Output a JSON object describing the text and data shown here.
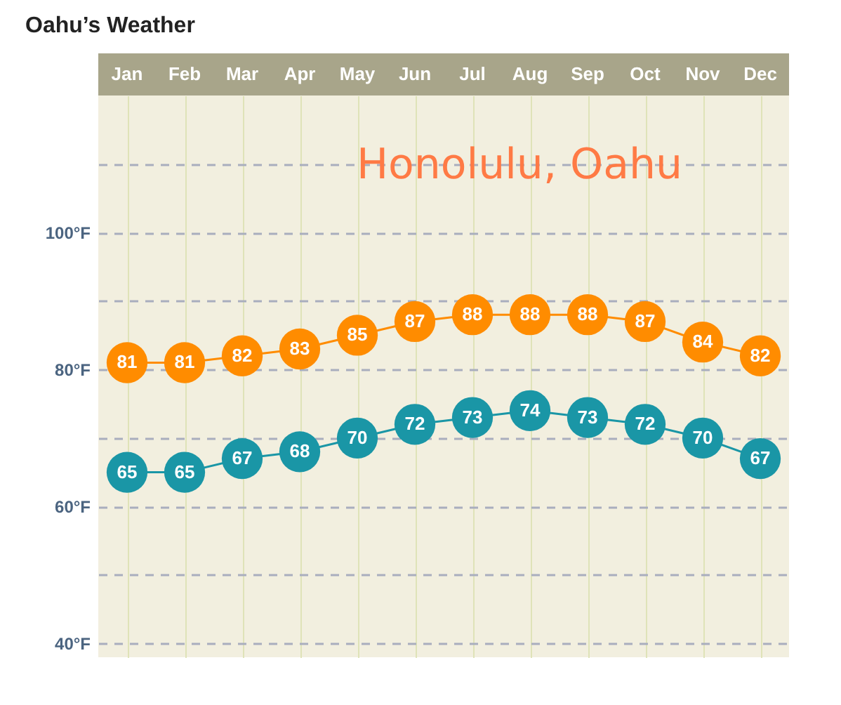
{
  "chart_data": {
    "type": "line",
    "title": "Oahu’s Weather",
    "annotations": [
      "Honolulu, Oahu"
    ],
    "categories": [
      "Jan",
      "Feb",
      "Mar",
      "Apr",
      "May",
      "Jun",
      "Jul",
      "Aug",
      "Sep",
      "Oct",
      "Nov",
      "Dec"
    ],
    "series": [
      {
        "color": "#ff8c00",
        "values": [
          81,
          81,
          82,
          83,
          85,
          87,
          88,
          88,
          88,
          87,
          84,
          82
        ]
      },
      {
        "color": "#1a96a6",
        "values": [
          65,
          65,
          67,
          68,
          70,
          72,
          73,
          74,
          73,
          72,
          70,
          67
        ]
      }
    ],
    "ylim": [
      38,
      120
    ],
    "yticks": [
      {
        "value": 40,
        "label": "40°F"
      },
      {
        "value": 50,
        "label": null
      },
      {
        "value": 60,
        "label": "60°F"
      },
      {
        "value": 70,
        "label": null
      },
      {
        "value": 80,
        "label": "80°F"
      },
      {
        "value": 90,
        "label": null
      },
      {
        "value": 100,
        "label": "100°F"
      },
      {
        "value": 110,
        "label": null
      }
    ],
    "grid": true,
    "legend": false,
    "marker": "circle",
    "line_style": "solid",
    "data_labels": true
  }
}
